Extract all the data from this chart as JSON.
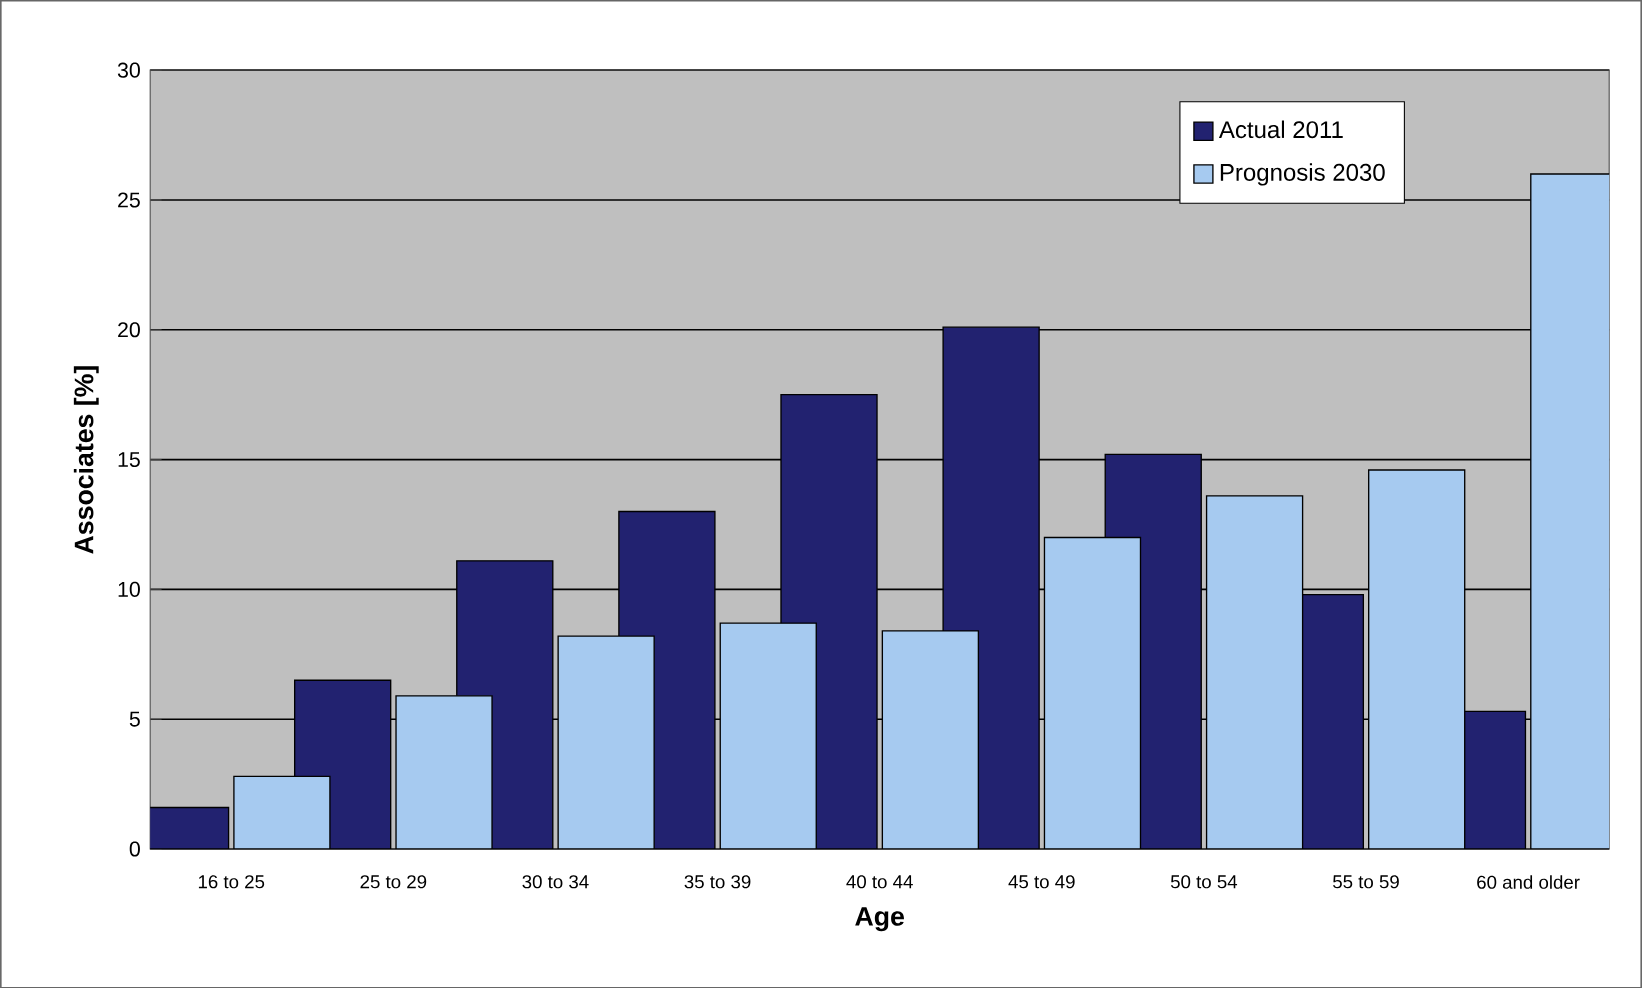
{
  "chart_data": {
    "type": "bar",
    "xlabel": "Age",
    "ylabel": "Associates [%]",
    "categories": [
      "16 to 25",
      "25 to 29",
      "30 to 34",
      "35 to 39",
      "40 to 44",
      "45 to 49",
      "50 to 54",
      "55 to 59",
      "60 and older"
    ],
    "series": [
      {
        "name": "Actual 2011",
        "color": "#222270",
        "values": [
          1.6,
          6.5,
          11.1,
          13.0,
          17.5,
          20.1,
          15.2,
          9.8,
          5.3
        ]
      },
      {
        "name": "Prognosis 2030",
        "color": "#a6caf0",
        "values": [
          2.8,
          5.9,
          8.2,
          8.7,
          8.4,
          12.0,
          13.6,
          14.6,
          26.0
        ]
      }
    ],
    "ylim": [
      0,
      30
    ],
    "yticks": [
      0,
      5,
      10,
      15,
      20,
      25,
      30
    ],
    "grid": "y",
    "legend": "top right"
  }
}
